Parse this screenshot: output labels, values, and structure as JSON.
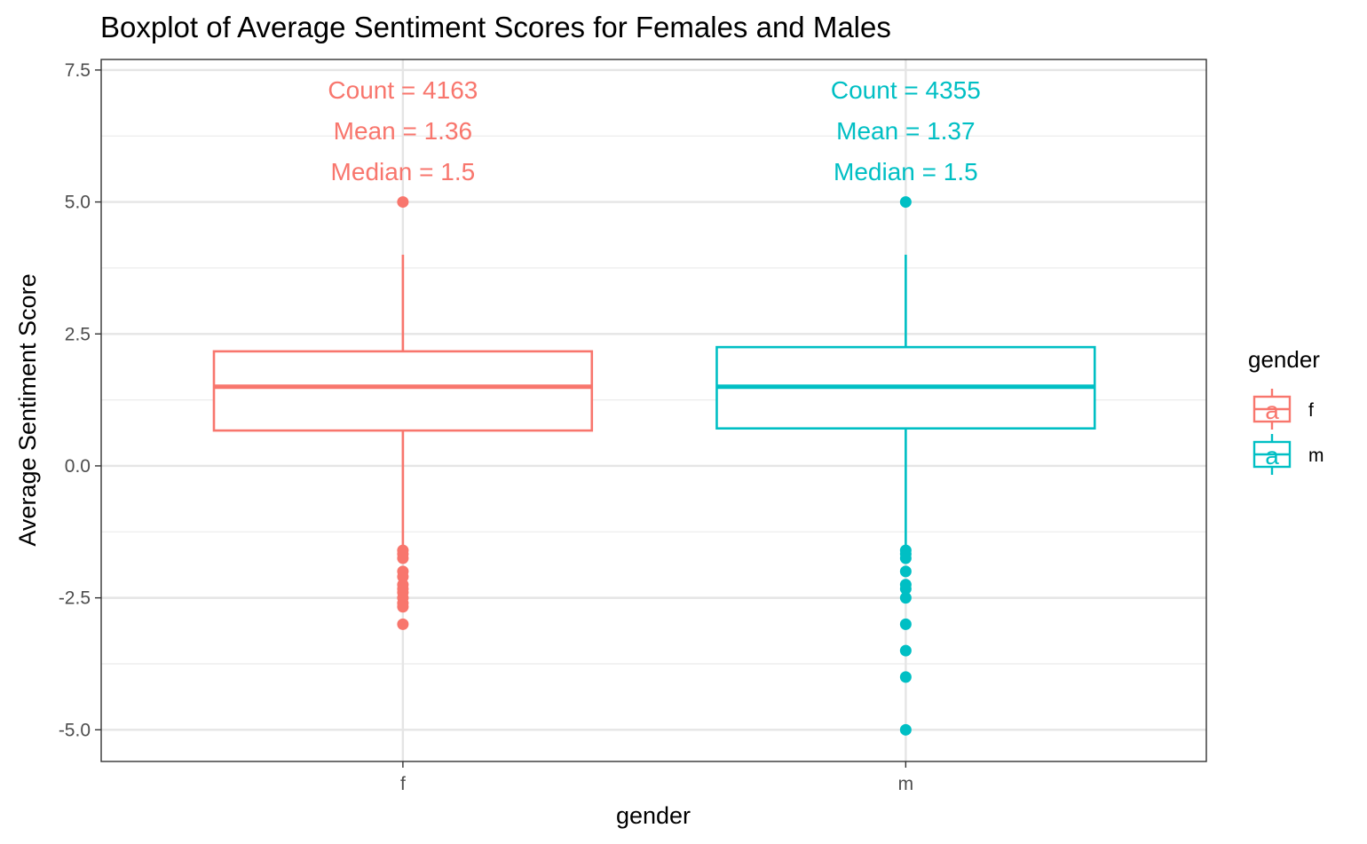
{
  "chart_data": {
    "type": "boxplot",
    "title": "Boxplot of Average Sentiment Scores for Females and Males",
    "xlabel": "gender",
    "ylabel": "Average Sentiment Score",
    "ylim": [
      -5.6,
      7.7
    ],
    "y_ticks": [
      "-5.0",
      "-2.5",
      "0.0",
      "2.5",
      "5.0",
      "7.5"
    ],
    "y_tick_values": [
      -5,
      -2.5,
      0,
      2.5,
      5,
      7.5
    ],
    "grid": true,
    "legend": {
      "title": "gender",
      "position": "right",
      "key_glyph": "a"
    },
    "colors": {
      "f": "#F8766D",
      "m": "#00BFC4"
    },
    "categories": [
      "f",
      "m"
    ],
    "series": [
      {
        "name": "f",
        "color": "#F8766D",
        "q1": 0.67,
        "median": 1.5,
        "q3": 2.17,
        "whisker_low": -1.5,
        "whisker_high": 4.0,
        "outliers": [
          5.0,
          -1.6,
          -1.67,
          -1.75,
          -2.0,
          -2.1,
          -2.25,
          -2.33,
          -2.4,
          -2.5,
          -2.6,
          -2.67,
          -3.0
        ],
        "annotations": [
          "Count = 4163",
          "Mean = 1.36",
          "Median = 1.5"
        ]
      },
      {
        "name": "m",
        "color": "#00BFC4",
        "q1": 0.71,
        "median": 1.5,
        "q3": 2.25,
        "whisker_low": -1.5,
        "whisker_high": 4.0,
        "outliers": [
          5.0,
          -1.6,
          -1.67,
          -1.75,
          -2.0,
          -2.25,
          -2.33,
          -2.5,
          -3.0,
          -3.5,
          -4.0,
          -5.0
        ],
        "annotations": [
          "Count = 4355",
          "Mean = 1.37",
          "Median = 1.5"
        ]
      }
    ]
  }
}
